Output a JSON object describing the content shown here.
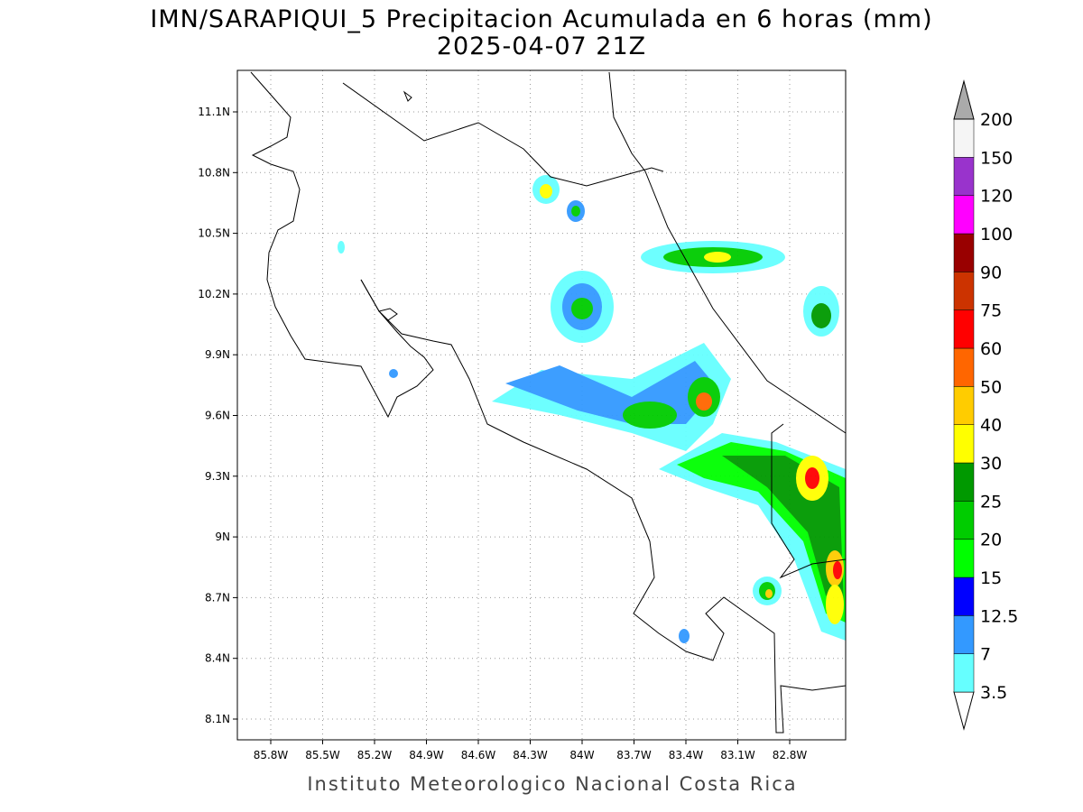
{
  "title": "IMN/SARAPIQUI_5 Precipitacion Acumulada en 6 horas (mm)",
  "subtitle": "2025-04-07 21Z",
  "footer": "Instituto Meteorologico Nacional Costa Rica",
  "map": {
    "lon_ticks": [
      "85.8W",
      "85.5W",
      "85.2W",
      "84.9W",
      "84.6W",
      "84.3W",
      "84W",
      "83.7W",
      "83.4W",
      "83.1W",
      "82.8W"
    ],
    "lat_ticks": [
      "11.1N",
      "10.8N",
      "10.5N",
      "10.2N",
      "9.9N",
      "9.6N",
      "9.3N",
      "9N",
      "8.7N",
      "8.4N",
      "8.1N"
    ]
  },
  "colorbar": {
    "levels": [
      "3.5",
      "7",
      "12.5",
      "15",
      "20",
      "25",
      "30",
      "40",
      "50",
      "60",
      "75",
      "90",
      "100",
      "120",
      "150",
      "200"
    ],
    "colors": [
      "#ffffff",
      "#66ffff",
      "#3399ff",
      "#0000ff",
      "#00ff00",
      "#00cc00",
      "#009900",
      "#ffff00",
      "#ffcc00",
      "#ff6600",
      "#ff0000",
      "#cc3300",
      "#990000",
      "#ff00ff",
      "#9933cc",
      "#f5f5f5",
      "#aaaaaa"
    ]
  }
}
